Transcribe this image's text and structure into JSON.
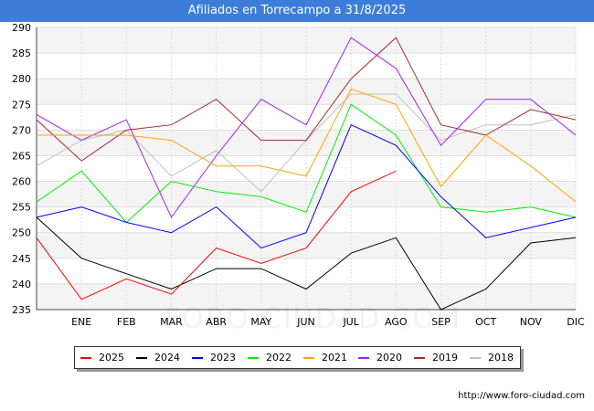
{
  "chart_data": {
    "type": "line",
    "title": "Afiliados en Torrecampo a 31/8/2025",
    "categories": [
      "",
      "ENE",
      "FEB",
      "MAR",
      "ABR",
      "MAY",
      "JUN",
      "JUL",
      "AGO",
      "SEP",
      "OCT",
      "NOV",
      "DIC"
    ],
    "ylim": [
      235,
      290
    ],
    "yticks": [
      235,
      240,
      245,
      250,
      255,
      260,
      265,
      270,
      275,
      280,
      285,
      290
    ],
    "grid": true,
    "legend_position": "bottom",
    "series": [
      {
        "name": "2025",
        "color": "#ff0000",
        "values": [
          249,
          237,
          241,
          238,
          247,
          244,
          247,
          258,
          262,
          null,
          null,
          null,
          null
        ]
      },
      {
        "name": "2024",
        "color": "#000000",
        "values": [
          253,
          245,
          242,
          239,
          243,
          243,
          239,
          246,
          249,
          235,
          239,
          248,
          249
        ]
      },
      {
        "name": "2023",
        "color": "#0000ff",
        "values": [
          253,
          255,
          252,
          250,
          255,
          247,
          250,
          271,
          267,
          257,
          249,
          251,
          253
        ]
      },
      {
        "name": "2022",
        "color": "#00ee00",
        "values": [
          256,
          262,
          252,
          260,
          258,
          257,
          254,
          275,
          269,
          255,
          254,
          255,
          253
        ]
      },
      {
        "name": "2021",
        "color": "#ffa500",
        "values": [
          269,
          269,
          269,
          268,
          263,
          263,
          261,
          278,
          275,
          259,
          269,
          263,
          256
        ]
      },
      {
        "name": "2020",
        "color": "#a020f0",
        "values": [
          273,
          268,
          272,
          253,
          265,
          276,
          271,
          288,
          282,
          267,
          276,
          276,
          269
        ]
      },
      {
        "name": "2019",
        "color": "#a52a2a",
        "values": [
          272,
          264,
          270,
          271,
          276,
          268,
          268,
          280,
          288,
          271,
          269,
          274,
          272
        ]
      },
      {
        "name": "2018",
        "color": "#c0c0c0",
        "values": [
          263,
          268,
          270,
          261,
          266,
          258,
          268,
          277,
          277,
          268,
          271,
          271,
          273
        ]
      }
    ]
  },
  "watermark": "FORO-CIUDAD.COM",
  "footer": {
    "url": "http://www.foro-ciudad.com"
  }
}
